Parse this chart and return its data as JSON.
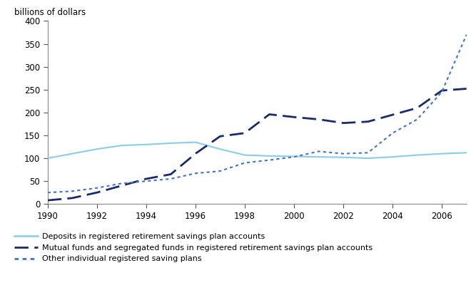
{
  "years": [
    1990,
    1991,
    1992,
    1993,
    1994,
    1995,
    1996,
    1997,
    1998,
    1999,
    2000,
    2001,
    2002,
    2003,
    2004,
    2005,
    2006,
    2007
  ],
  "deposits": [
    100,
    110,
    120,
    128,
    130,
    133,
    135,
    120,
    107,
    105,
    104,
    103,
    102,
    100,
    103,
    107,
    110,
    112
  ],
  "mutual_funds": [
    8,
    13,
    25,
    40,
    55,
    65,
    110,
    148,
    155,
    196,
    190,
    185,
    177,
    180,
    195,
    210,
    248,
    252
  ],
  "other": [
    25,
    28,
    35,
    45,
    50,
    55,
    67,
    72,
    90,
    96,
    103,
    115,
    110,
    112,
    155,
    185,
    245,
    370
  ],
  "deposits_color": "#87CEEB",
  "mutual_funds_color": "#1B2A6B",
  "other_color": "#4472C4",
  "ylabel": "billions of dollars",
  "ylim": [
    0,
    400
  ],
  "yticks": [
    0,
    50,
    100,
    150,
    200,
    250,
    300,
    350,
    400
  ],
  "xlim": [
    1990,
    2007
  ],
  "xticks": [
    1990,
    1992,
    1994,
    1996,
    1998,
    2000,
    2002,
    2004,
    2006
  ],
  "legend_labels": [
    "Deposits in registered retirement savings plan accounts",
    "Mutual funds and segregated funds in registered retirement savings plan accounts",
    "Other individual registered saving plans"
  ],
  "figsize": [
    6.67,
    4.21
  ],
  "dpi": 100
}
